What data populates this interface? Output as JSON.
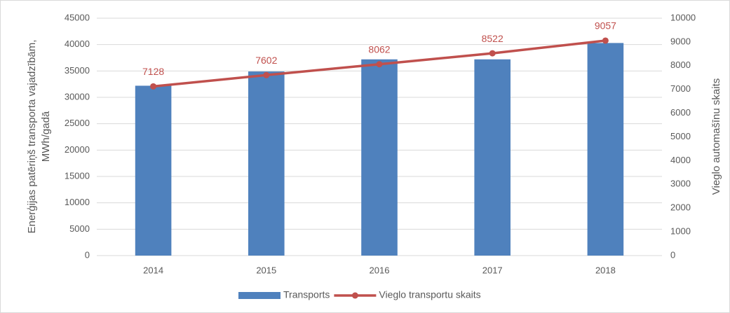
{
  "chart_data": {
    "type": "bar_line",
    "ylabel": [
      "Enerģijas patēriņš transporta vajadzībām,",
      "MWh/gadā"
    ],
    "y2label": "Vieglo automašīnu skaits",
    "categories": [
      "2014",
      "2015",
      "2016",
      "2017",
      "2018"
    ],
    "series": [
      {
        "name": "Transports",
        "type": "bar",
        "color": "#4f81bd",
        "values": [
          32200,
          34900,
          37200,
          37200,
          40300
        ]
      },
      {
        "name": "Vieglo transportu skaits",
        "type": "line",
        "axis": "y2",
        "color": "#c0504d",
        "values": [
          7128,
          7602,
          8062,
          8522,
          9057
        ]
      }
    ],
    "ylim": [
      0,
      45000
    ],
    "yticks": [
      0,
      5000,
      10000,
      15000,
      20000,
      25000,
      30000,
      35000,
      40000,
      45000
    ],
    "y2lim": [
      0,
      10000
    ],
    "y2ticks": [
      0,
      1000,
      2000,
      3000,
      4000,
      5000,
      6000,
      7000,
      8000,
      9000,
      10000
    ],
    "grid": true,
    "legend": "bottom"
  }
}
